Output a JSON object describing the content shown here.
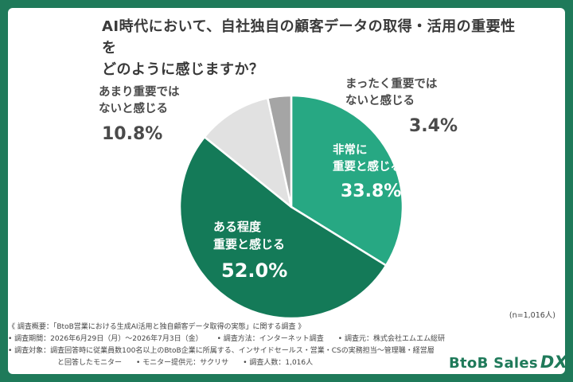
{
  "chart_data": {
    "type": "pie",
    "title_lines": [
      "AI時代において、自社独自の顧客データの取得・活用の重要性を",
      "どのように感じますか？"
    ],
    "slices": [
      {
        "label_lines": [
          "非常に",
          "重要と感じる"
        ],
        "value_text": "33.8%",
        "value": 33.8,
        "color": "#27a883"
      },
      {
        "label_lines": [
          "ある程度",
          "重要と感じる"
        ],
        "value_text": "52.0%",
        "value": 52.0,
        "color": "#147a58"
      },
      {
        "label_lines": [
          "あまり重要では",
          "ないと感じる"
        ],
        "value_text": "10.8%",
        "value": 10.8,
        "color": "#e1e1e1"
      },
      {
        "label_lines": [
          "まったく重要では",
          "ないと感じる"
        ],
        "value_text": "3.4%",
        "value": 3.4,
        "color": "#a5a5a5"
      }
    ],
    "start": "12 o'clock",
    "direction": "clockwise",
    "sample_note": "(n=1,016人)"
  },
  "footnote": {
    "line1": "《 調査概要：「BtoB営業における生成AI活用と独自顧客データ取得の実態」に関する調査 》",
    "period": "• 調査期間：2026年6月29日（月）〜2026年7月3日（金）",
    "method": "• 調査方法：インターネット調査",
    "source": "• 調査元：株式会社エムエム総研",
    "target": "• 調査対象：調査回答時に従業員数100名以上のBtoB企業に所属する、インサイドセールス・営業・CSの実務担当〜管理職・経営層",
    "target2": "と回答したモニター",
    "provider": "• モニター提供元：サクリサ",
    "count": "• 調査人数：1,016人"
  },
  "brand": {
    "name": "BtoB Sales",
    "suffix": "DX",
    "color": "#1f7a5a"
  }
}
